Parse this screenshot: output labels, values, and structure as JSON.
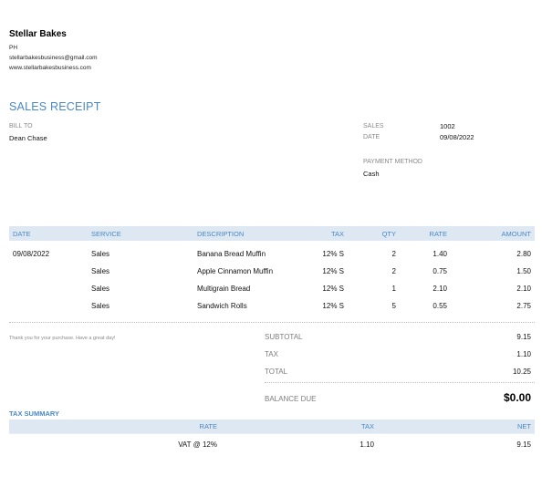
{
  "company": {
    "name": "Stellar Bakes",
    "country": "PH",
    "email": "stellarbakesbusiness@gmail.com",
    "website": "www.stellarbakesbusiness.com"
  },
  "receipt": {
    "title": "SALES RECEIPT",
    "bill_to_label": "BILL TO",
    "bill_to": "Dean Chase",
    "sales_label": "SALES",
    "sales_number": "1002",
    "date_label": "DATE",
    "date": "09/08/2022",
    "payment_method_label": "PAYMENT METHOD",
    "payment_method": "Cash"
  },
  "items_table": {
    "headers": {
      "date": "DATE",
      "service": "SERVICE",
      "description": "DESCRIPTION",
      "tax": "TAX",
      "qty": "QTY",
      "rate": "RATE",
      "amount": "AMOUNT"
    },
    "rows": [
      {
        "date": "09/08/2022",
        "service": "Sales",
        "description": "Banana Bread Muffin",
        "tax": "12% S",
        "qty": "2",
        "rate": "1.40",
        "amount": "2.80"
      },
      {
        "date": "",
        "service": "Sales",
        "description": "Apple Cinnamon Muffin",
        "tax": "12% S",
        "qty": "2",
        "rate": "0.75",
        "amount": "1.50"
      },
      {
        "date": "",
        "service": "Sales",
        "description": "Multigrain Bread",
        "tax": "12% S",
        "qty": "1",
        "rate": "2.10",
        "amount": "2.10"
      },
      {
        "date": "",
        "service": "Sales",
        "description": "Sandwich Rolls",
        "tax": "12% S",
        "qty": "5",
        "rate": "0.55",
        "amount": "2.75"
      }
    ]
  },
  "note": "Thank you for your purchase. Have a great day!",
  "summary": {
    "subtotal_label": "SUBTOTAL",
    "subtotal": "9.15",
    "tax_label": "TAX",
    "tax": "1.10",
    "total_label": "TOTAL",
    "total": "10.25",
    "balance_due_label": "BALANCE DUE",
    "balance_due": "$0.00"
  },
  "tax_summary": {
    "title": "TAX SUMMARY",
    "headers": {
      "rate": "RATE",
      "tax": "TAX",
      "net": "NET"
    },
    "rows": [
      {
        "rate": "VAT @ 12%",
        "tax": "1.10",
        "net": "9.15"
      }
    ]
  },
  "colors": {
    "accent": "#4a88c7",
    "header_bg": "#dde8f2"
  }
}
